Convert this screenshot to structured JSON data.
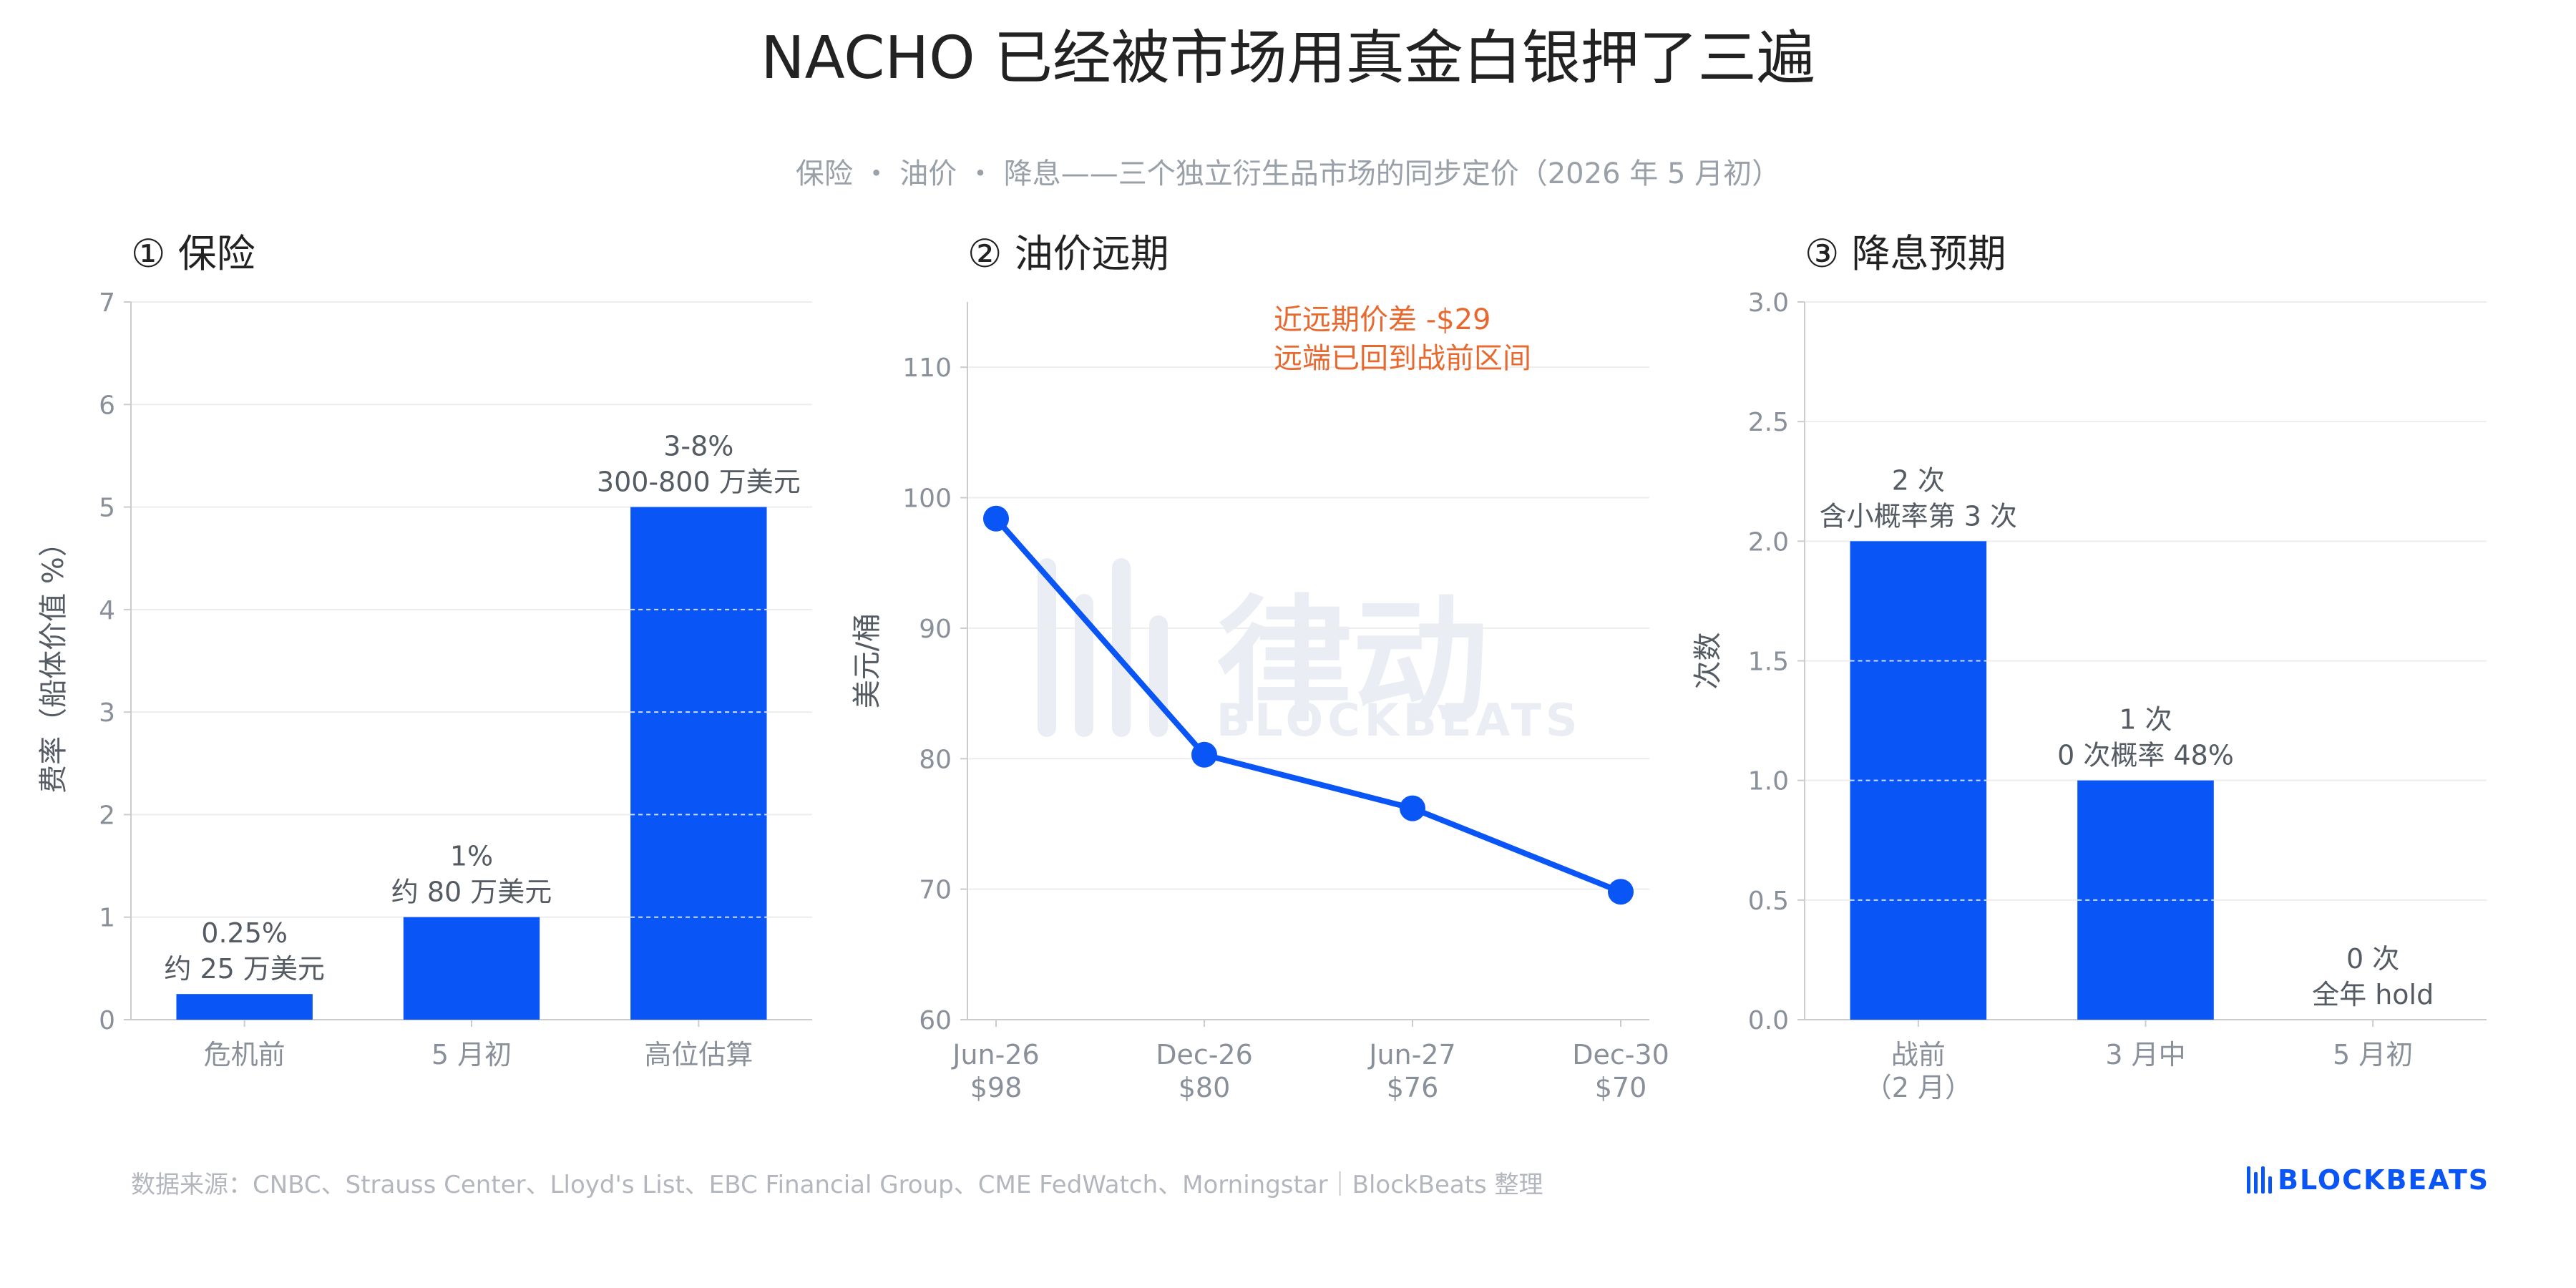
{
  "title": "NACHO 已经被市场用真金白银押了三遍",
  "subtitle": "保险 ・ 油价 ・ 降息——三个独立衍生品市场的同步定价（2026 年 5 月初）",
  "footer": "数据来源：CNBC、Strauss Center、Lloyd's List、EBC Financial Group、CME FedWatch、Morningstar｜BlockBeats 整理",
  "logo": "BLOCKBEATS",
  "watermark": {
    "cn": "律动",
    "en": "BLOCKBEATS"
  },
  "colors": {
    "bar": "#0a55f5",
    "line": "#0a55f5",
    "annotation": "#e8692f",
    "axis_text": "#8a9099",
    "label_text": "#555b63"
  },
  "chart_data": [
    {
      "type": "bar",
      "panel_title": "① 保险",
      "ylabel": "费率（船体价值 %）",
      "ylim": [
        0,
        7
      ],
      "yticks": [
        "0",
        "1",
        "2",
        "3",
        "4",
        "5",
        "6",
        "7"
      ],
      "categories": [
        "危机前",
        "5 月初",
        "高位估算"
      ],
      "values": [
        0.25,
        1,
        5
      ],
      "labels": [
        [
          "0.25%",
          "约 25 万美元"
        ],
        [
          "1%",
          "约 80 万美元"
        ],
        [
          "3-8%",
          "300-800 万美元"
        ]
      ],
      "grid": true
    },
    {
      "type": "line",
      "panel_title": "② 油价远期",
      "ylabel": "美元/桶",
      "ylim": [
        60,
        115
      ],
      "yticks": [
        "60",
        "70",
        "80",
        "90",
        "100",
        "110"
      ],
      "categories": [
        [
          "Jun-26",
          "$98"
        ],
        [
          "Dec-26",
          "$80"
        ],
        [
          "Jun-27",
          "$76"
        ],
        [
          "Dec-30",
          "$70"
        ]
      ],
      "values": [
        98.4,
        80.3,
        76.2,
        69.8
      ],
      "annotation": [
        "近远期价差 -$29",
        "远端已回到战前区间"
      ],
      "grid": true
    },
    {
      "type": "bar",
      "panel_title": "③ 降息预期",
      "ylabel": "次数",
      "ylim": [
        0,
        3
      ],
      "yticks": [
        "0.0",
        "0.5",
        "1.0",
        "1.5",
        "2.0",
        "2.5",
        "3.0"
      ],
      "categories": [
        [
          "战前",
          "（2 月）"
        ],
        [
          "3 月中"
        ],
        [
          "5 月初"
        ]
      ],
      "values": [
        2,
        1,
        0
      ],
      "labels": [
        [
          "2 次",
          "含小概率第 3 次"
        ],
        [
          "1 次",
          "0 次概率 48%"
        ],
        [
          "0 次",
          "全年 hold"
        ]
      ],
      "grid": true
    }
  ]
}
